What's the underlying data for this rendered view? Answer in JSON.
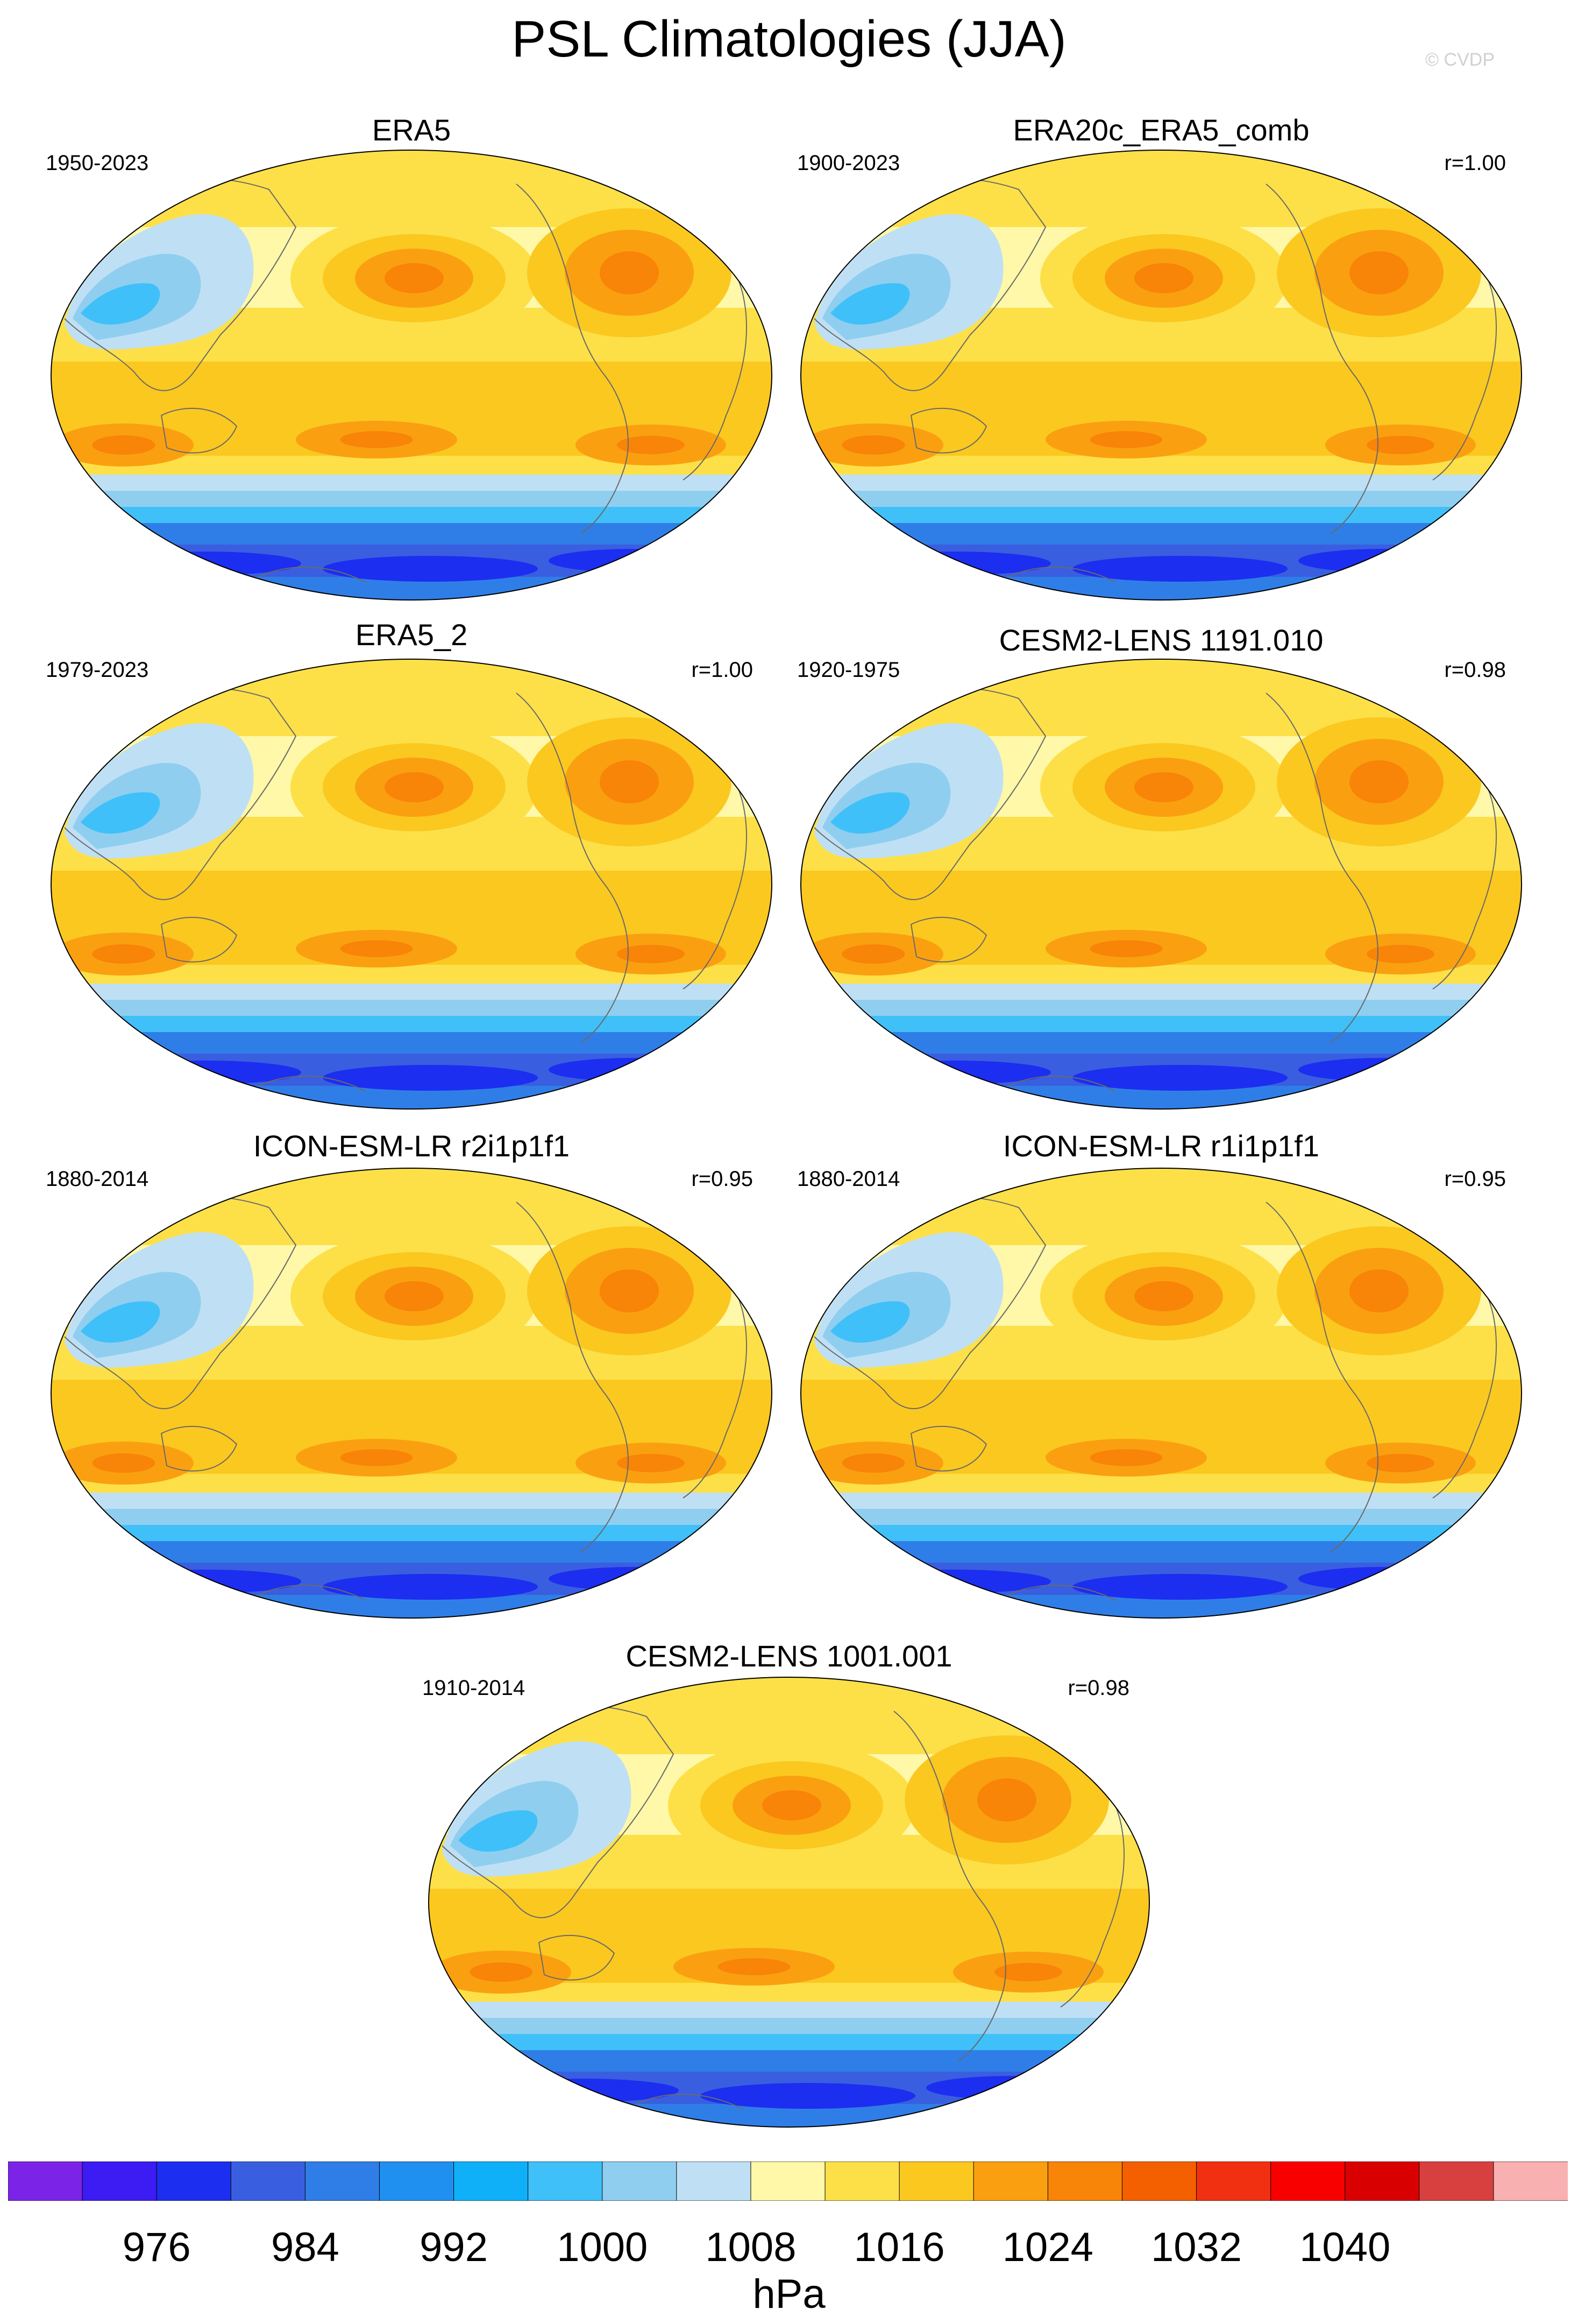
{
  "title": "PSL Climatologies (JJA)",
  "credit": "© CVDP",
  "panels": [
    {
      "name": "ERA5",
      "years": "1950-2023",
      "corr": ""
    },
    {
      "name": "ERA20c_ERA5_comb",
      "years": "1900-2023",
      "corr": "r=1.00"
    },
    {
      "name": "ERA5_2",
      "years": "1979-2023",
      "corr": "r=1.00"
    },
    {
      "name": "CESM2-LENS 1191.010",
      "years": "1920-1975",
      "corr": "r=0.98"
    },
    {
      "name": "ICON-ESM-LR r2i1p1f1",
      "years": "1880-2014",
      "corr": "r=0.95"
    },
    {
      "name": "ICON-ESM-LR r1i1p1f1",
      "years": "1880-2014",
      "corr": "r=0.95"
    },
    {
      "name": "CESM2-LENS 1001.001",
      "years": "1910-2014",
      "corr": "r=0.98"
    }
  ],
  "colorbar": {
    "units": "hPa",
    "tick_labels": [
      "976",
      "984",
      "992",
      "1000",
      "1008",
      "1016",
      "1024",
      "1032",
      "1040"
    ],
    "colors": [
      "#7b24e8",
      "#3c1cf2",
      "#1c2ef0",
      "#3a5ee0",
      "#2f7ee8",
      "#2090f0",
      "#10b0f8",
      "#40c0f8",
      "#90cef0",
      "#bfe0f4",
      "#fff8a8",
      "#fde048",
      "#fbc820",
      "#faa010",
      "#f88408",
      "#f46000",
      "#f03010",
      "#f80000",
      "#d80000",
      "#d84040",
      "#f8b0b0"
    ]
  }
}
